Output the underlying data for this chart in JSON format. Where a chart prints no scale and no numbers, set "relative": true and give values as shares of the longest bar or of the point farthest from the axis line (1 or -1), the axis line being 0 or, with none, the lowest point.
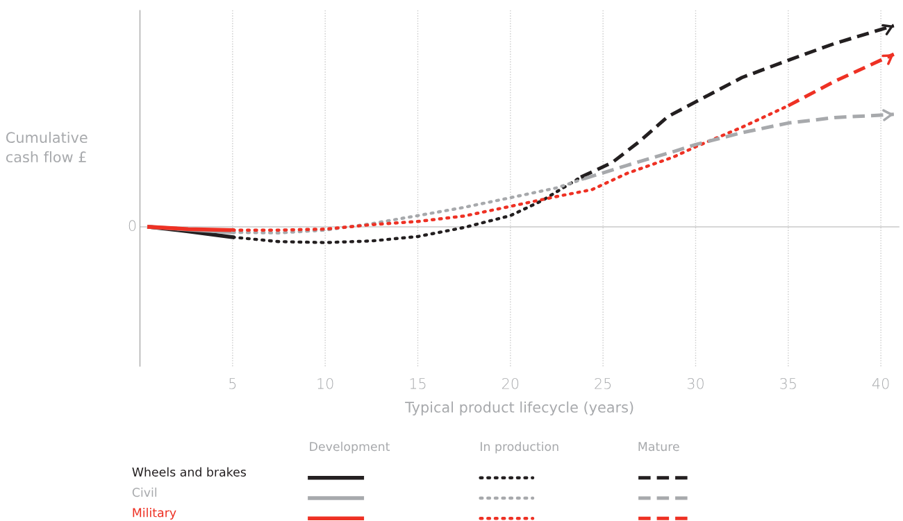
{
  "chart_data": {
    "type": "line",
    "relative": true,
    "ylabel": "Cumulative\ncash flow £",
    "xlabel": "Typical product lifecycle (years)",
    "xlim": [
      0,
      41
    ],
    "xticks": [
      5,
      10,
      15,
      20,
      25,
      30,
      35,
      40
    ],
    "ref_lines": [
      {
        "axis": "y",
        "value": 0,
        "label": "0",
        "color": "#c8c8c8"
      }
    ],
    "grid": "x",
    "legend": "bottom",
    "marker": "none",
    "annotations": [
      "Development",
      "In production",
      "Mature"
    ],
    "series": [
      {
        "name": "Wheels and brakes",
        "color": "#231f20",
        "line_style": "solid",
        "x": [
          0.5,
          2.6,
          5
        ],
        "values": [
          0,
          -0.022,
          -0.051
        ]
      },
      {
        "name": "Civil",
        "color": "#a7a9ac",
        "line_style": "solid",
        "x": [
          0.5,
          5
        ],
        "values": [
          0,
          -0.027
        ]
      },
      {
        "name": "Military",
        "color": "#ee3124",
        "line_style": "solid",
        "x": [
          0.5,
          2.6,
          5
        ],
        "values": [
          0,
          -0.011,
          -0.016
        ]
      },
      {
        "color": "#231f20",
        "line_style": "dotted",
        "x": [
          5,
          7.5,
          10,
          12.5,
          15,
          17.5,
          20,
          21.7,
          23.8
        ],
        "values": [
          -0.051,
          -0.073,
          -0.078,
          -0.07,
          -0.048,
          -0.003,
          0.056,
          0.13,
          0.247
        ]
      },
      {
        "color": "#a7a9ac",
        "line_style": "dotted",
        "x": [
          5,
          7.5,
          10,
          12.5,
          15,
          17.5,
          20,
          22.5,
          24
        ],
        "values": [
          -0.027,
          -0.03,
          -0.016,
          0.016,
          0.056,
          0.097,
          0.145,
          0.194,
          0.24
        ]
      },
      {
        "color": "#ee3124",
        "line_style": "dotted",
        "x": [
          5,
          7.5,
          10,
          12.5,
          15,
          17.5,
          20,
          22.5,
          24.4,
          26.3,
          28.8,
          30,
          32.5,
          35
        ],
        "values": [
          -0.016,
          -0.016,
          -0.011,
          0.011,
          0.027,
          0.054,
          0.102,
          0.151,
          0.185,
          0.266,
          0.347,
          0.398,
          0.495,
          0.602
        ]
      },
      {
        "color": "#231f20",
        "line_style": "dashed",
        "x": [
          23.8,
          25.5,
          27,
          28.5,
          30,
          32.5,
          35,
          37.5,
          40.7
        ],
        "values": [
          0.247,
          0.32,
          0.427,
          0.548,
          0.621,
          0.742,
          0.828,
          0.911,
          1.0
        ]
      },
      {
        "color": "#a7a9ac",
        "line_style": "dashed",
        "x": [
          24,
          26.3,
          28.8,
          30,
          32.5,
          35,
          37.5,
          40.7
        ],
        "values": [
          0.24,
          0.306,
          0.374,
          0.409,
          0.468,
          0.516,
          0.543,
          0.559
        ]
      },
      {
        "color": "#ee3124",
        "line_style": "dashed",
        "x": [
          35,
          37.5,
          40.7
        ],
        "values": [
          0.602,
          0.723,
          0.858
        ]
      }
    ]
  }
}
